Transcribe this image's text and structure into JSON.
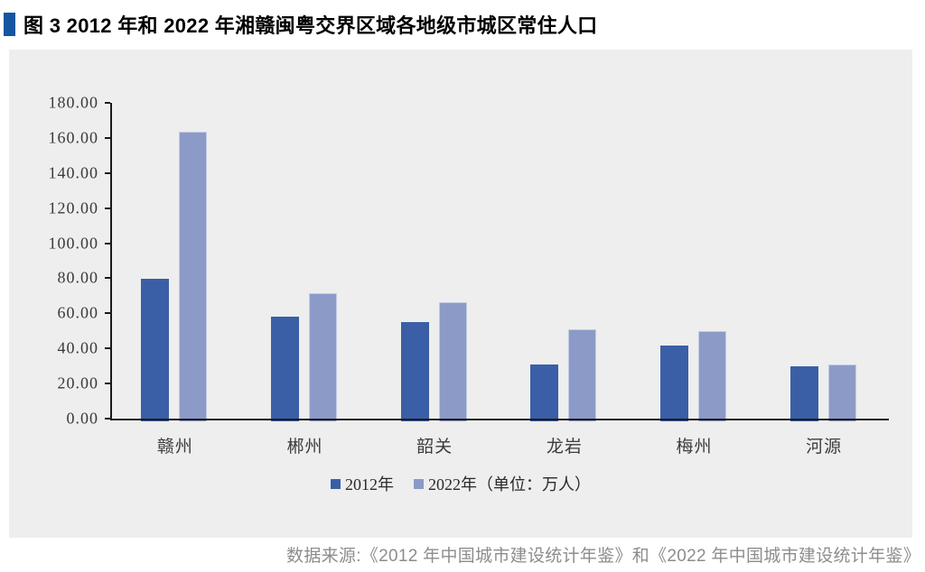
{
  "figure": {
    "title": "图 3  2012 年和 2022 年湘赣闽粤交界区域各地级市城区常住人口",
    "source": "数据来源:《2012 年中国城市建设统计年鉴》和《2022 年中国城市建设统计年鉴》"
  },
  "chart_data": {
    "type": "bar",
    "title": "2012年和2022年湘赣闽粤交界区域各地级市城区常住人口",
    "unit": "万人",
    "categories": [
      "赣州",
      "郴州",
      "韶关",
      "龙岩",
      "梅州",
      "河源"
    ],
    "series": [
      {
        "key": "2012",
        "name": "2012年",
        "color": "#3b5fa6",
        "values": [
          79.5,
          58.0,
          55.0,
          31.0,
          41.5,
          30.0
        ]
      },
      {
        "key": "2022",
        "name": "2022年",
        "color": "#8c9ac7",
        "values": [
          163.5,
          71.5,
          66.5,
          51.0,
          50.0,
          31.0
        ]
      }
    ],
    "legend_labels": [
      "2012年",
      "2022年（单位：万人）"
    ],
    "legend_position": "bottom",
    "grid": false,
    "ylim": [
      0,
      180
    ],
    "ytick_step": 20,
    "ytick_labels": [
      "180.00",
      "160.00",
      "140.00",
      "120.00",
      "100.00",
      "80.00",
      "60.00",
      "40.00",
      "20.00",
      "0.00"
    ]
  },
  "colors": {
    "title_marker": "#1456a0",
    "panel_background": "#edeeed",
    "axis": "#1a1a1a",
    "bar_2012": "#3b5fa6",
    "bar_2022": "#8c9ac7",
    "bar_2022_border": "#c2cbe3",
    "source_text": "#8d8d8d"
  }
}
